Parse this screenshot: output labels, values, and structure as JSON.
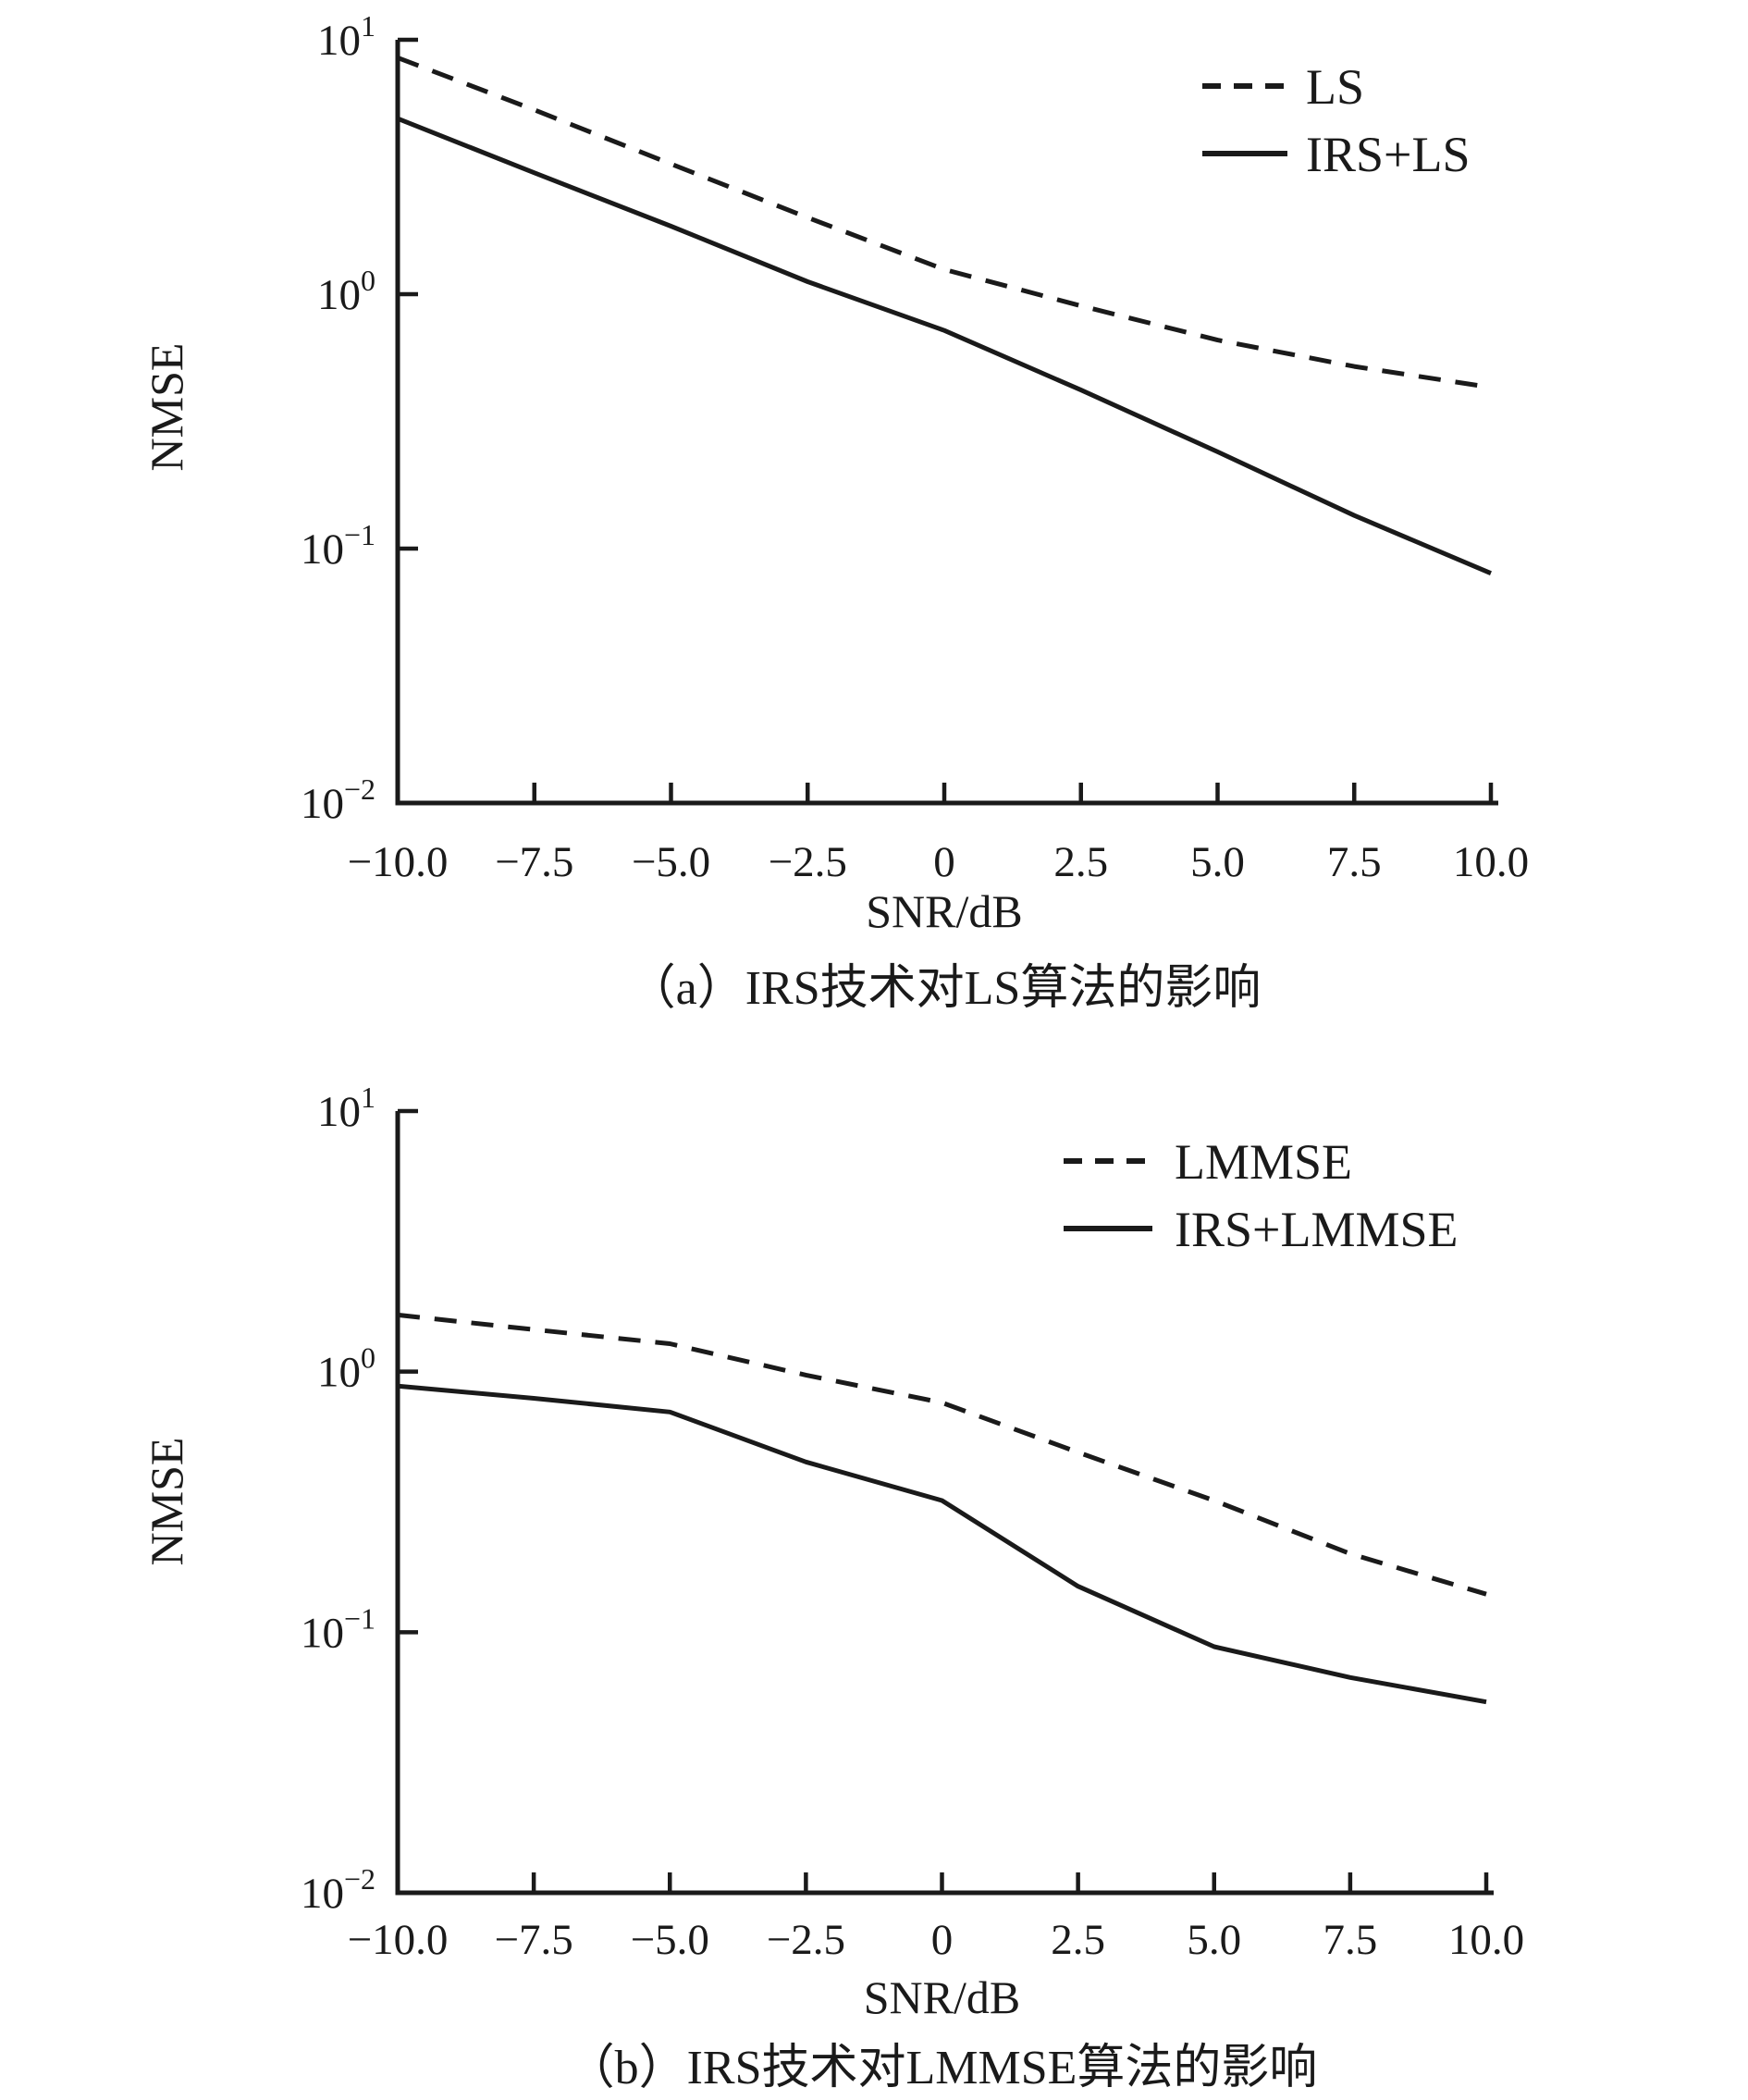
{
  "page": {
    "background": "#ffffff",
    "ink": "#1a1a1a"
  },
  "chart_data": [
    {
      "id": "a",
      "type": "line",
      "title": "（a）IRS技术对LS算法的影响",
      "xlabel": "SNR/dB",
      "ylabel": "NMSE",
      "xlim": [
        -10,
        10
      ],
      "ylim": [
        0.01,
        10
      ],
      "y_scale": "log",
      "grid": false,
      "legend_position": "upper right",
      "x": [
        -10,
        -7.5,
        -5,
        -2.5,
        0,
        2.5,
        5,
        7.5,
        10
      ],
      "x_ticks": [
        {
          "v": -10,
          "label": "−10.0"
        },
        {
          "v": -7.5,
          "label": "−7.5"
        },
        {
          "v": -5,
          "label": "−5.0"
        },
        {
          "v": -2.5,
          "label": "−2.5"
        },
        {
          "v": 0,
          "label": "0"
        },
        {
          "v": 2.5,
          "label": "2.5"
        },
        {
          "v": 5,
          "label": "5.0"
        },
        {
          "v": 7.5,
          "label": "7.5"
        },
        {
          "v": 10,
          "label": "10.0"
        }
      ],
      "y_ticks": [
        {
          "v": 10,
          "base": "10",
          "exp": "1"
        },
        {
          "v": 1,
          "base": "10",
          "exp": "0"
        },
        {
          "v": 0.1,
          "base": "10",
          "exp": "−1"
        },
        {
          "v": 0.01,
          "base": "10",
          "exp": "−2"
        }
      ],
      "series": [
        {
          "name": "LS",
          "style": "dashed",
          "values": [
            8.5,
            5.3,
            3.25,
            2.0,
            1.25,
            0.9,
            0.66,
            0.52,
            0.43
          ]
        },
        {
          "name": "IRS+LS",
          "style": "solid",
          "values": [
            4.9,
            3.0,
            1.85,
            1.12,
            0.72,
            0.42,
            0.24,
            0.135,
            0.08
          ]
        }
      ]
    },
    {
      "id": "b",
      "type": "line",
      "title": "（b）IRS技术对LMMSE算法的影响",
      "xlabel": "SNR/dB",
      "ylabel": "NMSE",
      "xlim": [
        -10,
        10
      ],
      "ylim": [
        0.01,
        10
      ],
      "y_scale": "log",
      "grid": false,
      "legend_position": "upper right",
      "x": [
        -10,
        -7.5,
        -5,
        -2.5,
        0,
        2.5,
        5,
        7.5,
        10
      ],
      "x_ticks": [
        {
          "v": -10,
          "label": "−10.0"
        },
        {
          "v": -7.5,
          "label": "−7.5"
        },
        {
          "v": -5,
          "label": "−5.0"
        },
        {
          "v": -2.5,
          "label": "−2.5"
        },
        {
          "v": 0,
          "label": "0"
        },
        {
          "v": 2.5,
          "label": "2.5"
        },
        {
          "v": 5,
          "label": "5.0"
        },
        {
          "v": 7.5,
          "label": "7.5"
        },
        {
          "v": 10,
          "label": "10.0"
        }
      ],
      "y_ticks": [
        {
          "v": 10,
          "base": "10",
          "exp": "1"
        },
        {
          "v": 1,
          "base": "10",
          "exp": "0"
        },
        {
          "v": 0.1,
          "base": "10",
          "exp": "−1"
        },
        {
          "v": 0.01,
          "base": "10",
          "exp": "−2"
        }
      ],
      "series": [
        {
          "name": "LMMSE",
          "style": "dashed",
          "values": [
            1.65,
            1.45,
            1.28,
            0.97,
            0.76,
            0.49,
            0.32,
            0.2,
            0.14
          ]
        },
        {
          "name": "IRS+LMMSE",
          "style": "solid",
          "values": [
            0.88,
            0.79,
            0.7,
            0.45,
            0.32,
            0.15,
            0.088,
            0.067,
            0.054
          ]
        }
      ]
    }
  ]
}
